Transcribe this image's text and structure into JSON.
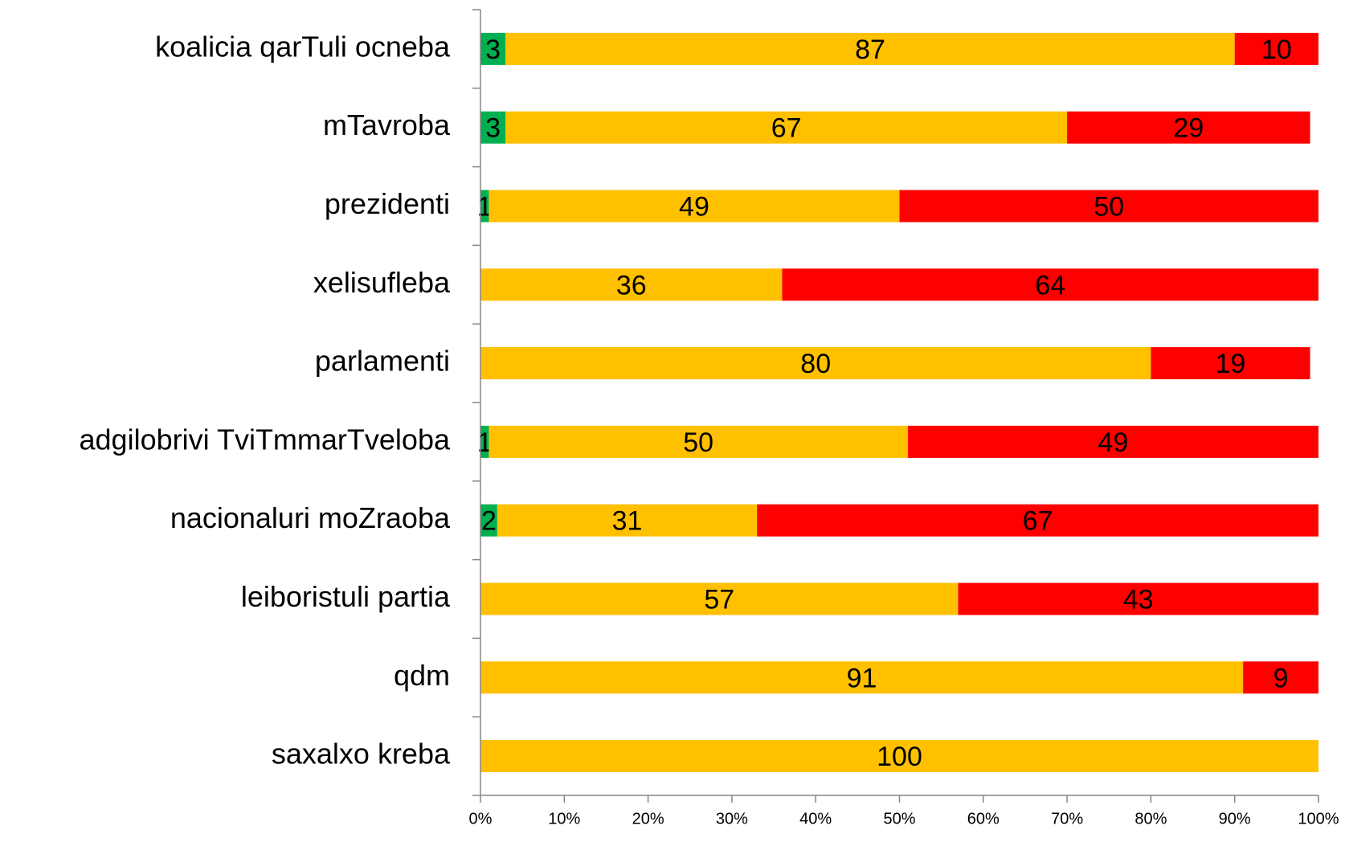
{
  "chart_data": {
    "type": "stacked_bar_horizontal",
    "categories": [
      "koalicia qarTuli ocneba",
      "mTavroba",
      "prezidenti",
      "xelisufleba",
      "parlamenti",
      "adgilobrivi TviTmmarTveloba",
      "nacionaluri moZraoba",
      "leiboristuli partia",
      "qdm",
      "saxalxo kreba"
    ],
    "series": [
      {
        "color": "#00b050",
        "values": [
          3,
          3,
          1,
          0,
          0,
          1,
          2,
          0,
          0,
          0
        ]
      },
      {
        "color": "#ffc000",
        "values": [
          87,
          67,
          49,
          36,
          80,
          50,
          31,
          57,
          91,
          100
        ]
      },
      {
        "color": "#ff0000",
        "values": [
          10,
          29,
          50,
          64,
          19,
          49,
          67,
          43,
          9,
          0
        ]
      }
    ],
    "xlim": [
      0,
      100
    ],
    "xticks": [
      {
        "value": 0,
        "label": "0%"
      },
      {
        "value": 10,
        "label": "10%"
      },
      {
        "value": 20,
        "label": "20%"
      },
      {
        "value": 30,
        "label": "30%"
      },
      {
        "value": 40,
        "label": "40%"
      },
      {
        "value": 50,
        "label": "50%"
      },
      {
        "value": 60,
        "label": "60%"
      },
      {
        "value": 70,
        "label": "70%"
      },
      {
        "value": 80,
        "label": "80%"
      },
      {
        "value": 90,
        "label": "90%"
      },
      {
        "value": 100,
        "label": "100%"
      }
    ]
  }
}
